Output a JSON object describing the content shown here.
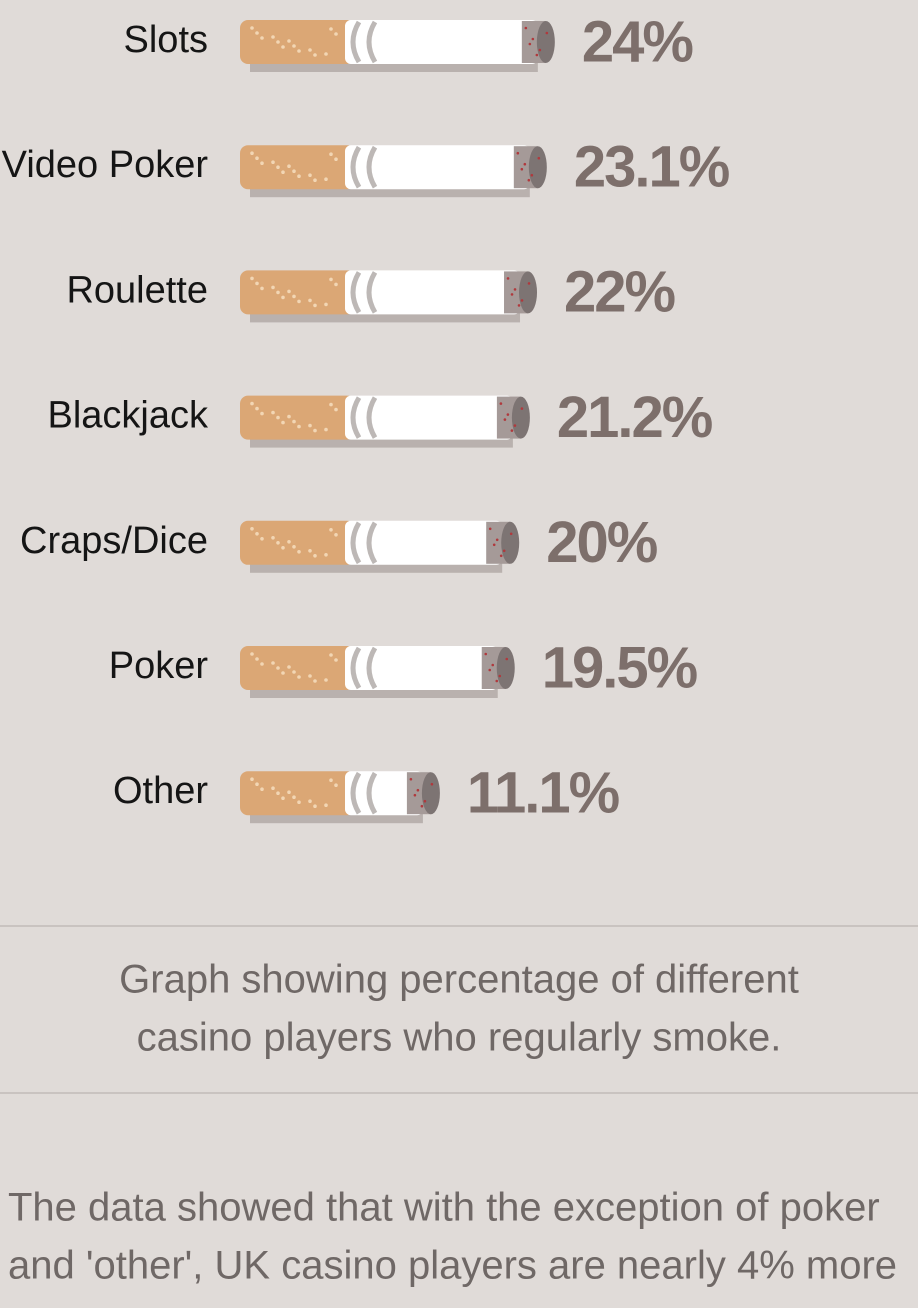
{
  "chart_data": {
    "type": "bar",
    "categories": [
      "Slots",
      "Video Poker",
      "Roulette",
      "Blackjack",
      "Craps/Dice",
      "Poker",
      "Other"
    ],
    "values": [
      24,
      23.1,
      22,
      21.2,
      20,
      19.5,
      11.1
    ],
    "value_labels": [
      "24%",
      "23.1%",
      "22%",
      "21.2%",
      "20%",
      "19.5%",
      "11.1%"
    ],
    "color": "#dba775"
  },
  "caption": [
    "Graph showing percentage of different",
    "casino players who regularly smoke."
  ],
  "body_text": [
    "The data showed that with the exception of poker",
    "and 'other', UK casino players are nearly 4% more"
  ]
}
